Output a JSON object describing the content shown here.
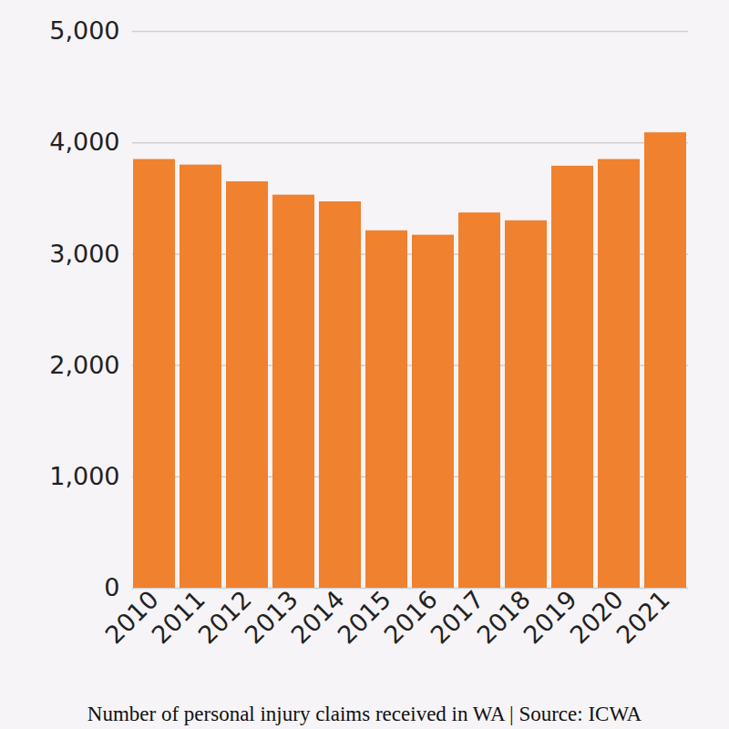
{
  "chart_data": {
    "type": "bar",
    "title": "Number of personal injury claims received in WA | Source: ICWA",
    "categories": [
      "2010",
      "2011",
      "2012",
      "2013",
      "2014",
      "2015",
      "2016",
      "2017",
      "2018",
      "2019",
      "2020",
      "2021"
    ],
    "values": [
      3850,
      3800,
      3650,
      3530,
      3470,
      3210,
      3170,
      3370,
      3300,
      3790,
      3850,
      4090
    ],
    "color": "#f0812e",
    "ylim": [
      0,
      5000
    ],
    "yticks": [
      0,
      {
        "value": 1000,
        "label": "1,000"
      },
      {
        "value": 2000,
        "label": "2,000"
      },
      {
        "value": 3000,
        "label": "3,000"
      },
      {
        "value": 4000,
        "label": "4,000"
      },
      {
        "value": 5000,
        "label": "5,000"
      }
    ],
    "grid": true
  }
}
